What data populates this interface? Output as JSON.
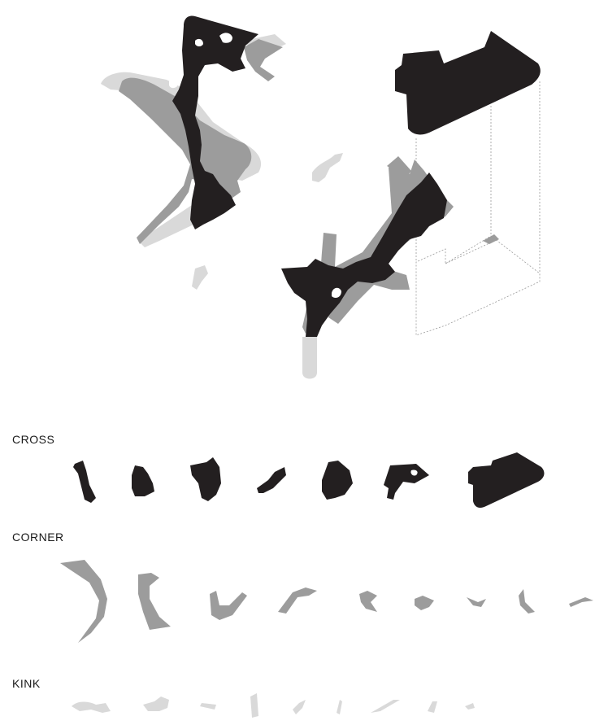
{
  "sections": {
    "cross": "CROSS",
    "corner": "CORNER",
    "kink": "KINK"
  },
  "colors": {
    "solid": "#231f20",
    "medium_grey": "#9c9c9c",
    "light_grey": "#d9d9d9",
    "background": "#ffffff"
  }
}
